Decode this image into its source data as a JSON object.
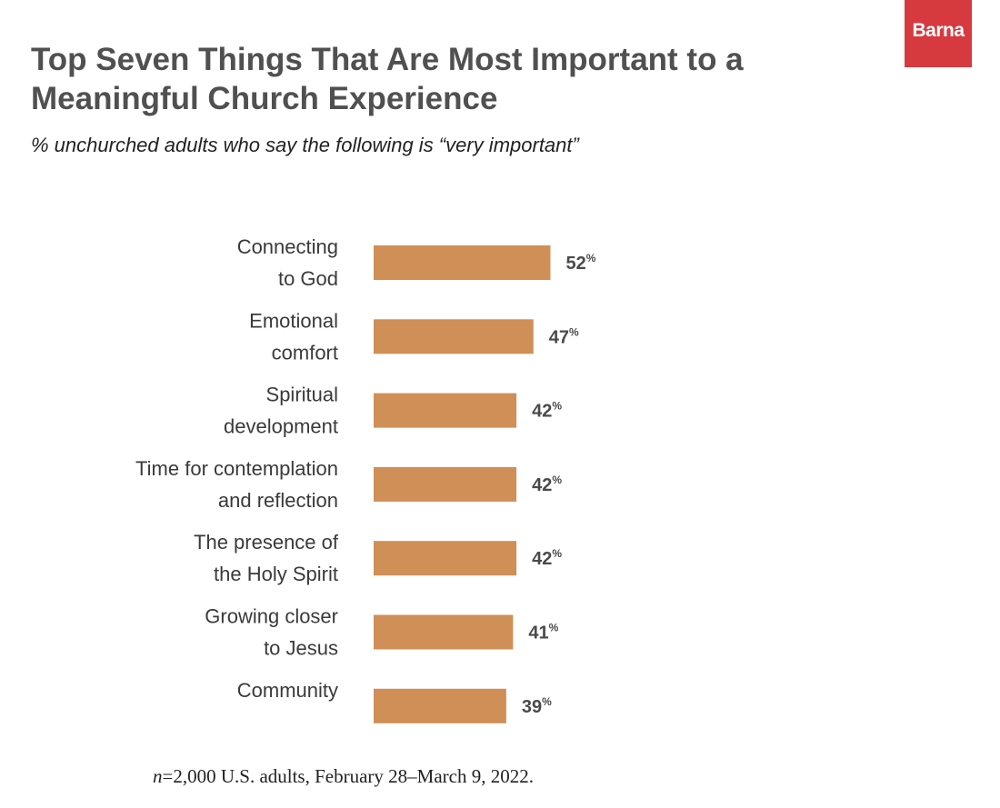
{
  "brand": {
    "name": "Barna",
    "color": "#d63a3f"
  },
  "chart_data": {
    "type": "bar",
    "orientation": "horizontal",
    "title": "Top Seven Things That Are Most Important to a Meaningful Church Experience",
    "subtitle": "% unchurched adults who say the following is “very important”",
    "categories": [
      [
        "Connecting",
        "to God"
      ],
      [
        "Emotional",
        "comfort"
      ],
      [
        "Spiritual",
        "development"
      ],
      [
        "Time for contemplation",
        "and reflection"
      ],
      [
        "The presence of",
        "the Holy Spirit"
      ],
      [
        "Growing closer",
        "to Jesus"
      ],
      [
        "Community"
      ]
    ],
    "values": [
      52,
      47,
      42,
      42,
      42,
      41,
      39
    ],
    "value_suffix": "%",
    "bar_color": "#cf8f57",
    "xlabel": "",
    "ylabel": "",
    "xlim": [
      0,
      100
    ],
    "grid": false
  },
  "footnote": {
    "n_symbol": "n",
    "text": "=2,000 U.S. adults, February 28–March 9, 2022."
  }
}
